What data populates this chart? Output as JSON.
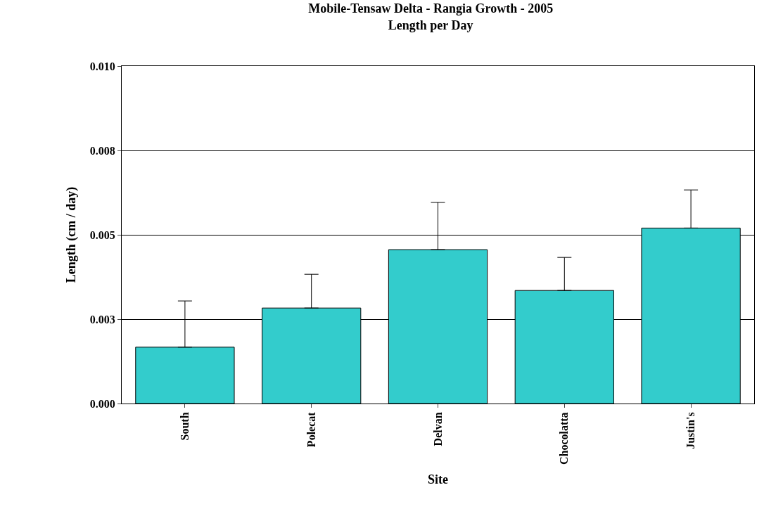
{
  "chart_data": {
    "type": "bar",
    "title": "Mobile-Tensaw Delta - Rangia Growth - 2005",
    "subtitle": "Length per Day",
    "xlabel": "Site",
    "ylabel": "Length (cm / day)",
    "categories": [
      "South",
      "Polecat",
      "Delvan",
      "Chocolatta",
      "Justin's"
    ],
    "values": [
      0.00167,
      0.00283,
      0.00456,
      0.00335,
      0.0052
    ],
    "errors": [
      [
        0.00167,
        0.00304
      ],
      [
        0.00283,
        0.00383
      ],
      [
        0.00456,
        0.00596
      ],
      [
        0.00335,
        0.00433
      ],
      [
        0.0052,
        0.00633
      ]
    ],
    "color": "#33cccc",
    "ylim": [
      0,
      0.01
    ],
    "yticks": [
      {
        "value": 0,
        "label": "0.000"
      },
      {
        "value": 0.0025,
        "label": "0.003"
      },
      {
        "value": 0.005,
        "label": "0.005"
      },
      {
        "value": 0.0075,
        "label": "0.008"
      },
      {
        "value": 0.01,
        "label": "0.010"
      }
    ],
    "grid": "y"
  }
}
